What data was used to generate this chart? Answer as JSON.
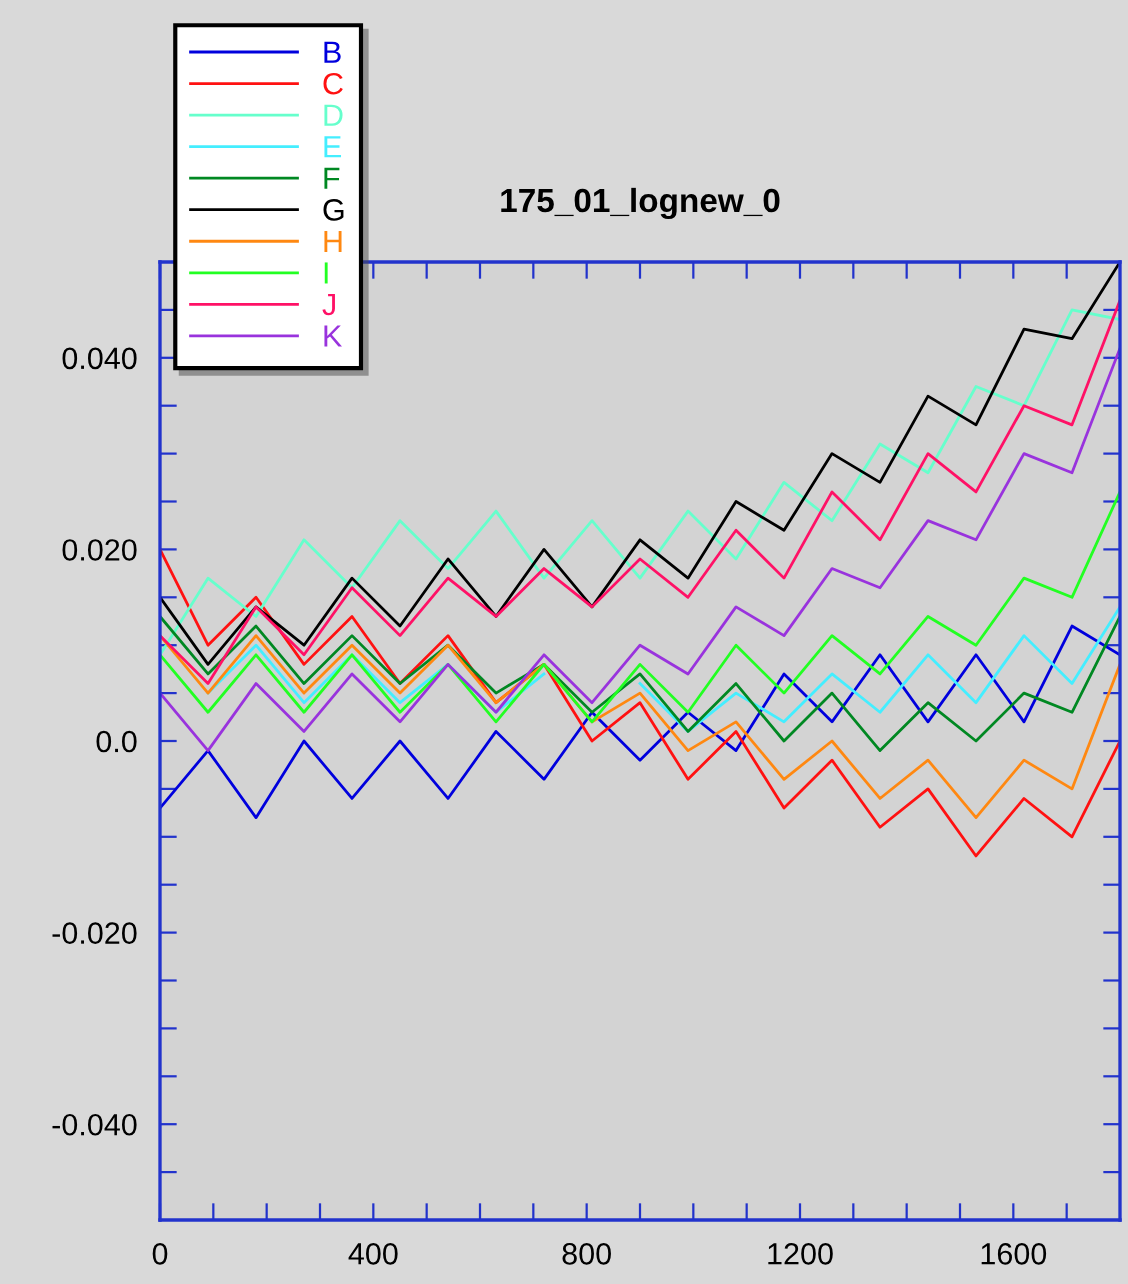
{
  "chart_data": {
    "type": "line",
    "title": "175_01_lognew_0",
    "legend": "top left",
    "grid": false,
    "marker": "none",
    "line_style": "solid",
    "x": [
      0,
      90,
      180,
      270,
      360,
      450,
      540,
      630,
      720,
      810,
      900,
      990,
      1080,
      1170,
      1260,
      1350,
      1440,
      1530,
      1620,
      1710,
      1800
    ],
    "xlim": [
      0,
      1800
    ],
    "ylim": [
      -0.05,
      0.05
    ],
    "xticks": [
      0,
      {
        "value": 100,
        "label": null
      },
      {
        "value": 200,
        "label": null
      },
      {
        "value": 300,
        "label": null
      },
      400,
      {
        "value": 500,
        "label": null
      },
      {
        "value": 600,
        "label": null
      },
      {
        "value": 700,
        "label": null
      },
      800,
      {
        "value": 900,
        "label": null
      },
      {
        "value": 1000,
        "label": null
      },
      {
        "value": 1100,
        "label": null
      },
      1200,
      {
        "value": 1300,
        "label": null
      },
      {
        "value": 1400,
        "label": null
      },
      {
        "value": 1500,
        "label": null
      },
      1600,
      {
        "value": 1700,
        "label": null
      }
    ],
    "yticks": [
      {
        "value": -0.045,
        "label": null
      },
      {
        "value": -0.04,
        "label": "-0.040"
      },
      {
        "value": -0.035,
        "label": null
      },
      {
        "value": -0.03,
        "label": null
      },
      {
        "value": -0.025,
        "label": null
      },
      {
        "value": -0.02,
        "label": "-0.020"
      },
      {
        "value": -0.015,
        "label": null
      },
      {
        "value": -0.01,
        "label": null
      },
      {
        "value": -0.005,
        "label": null
      },
      {
        "value": 0,
        "label": "0.0"
      },
      {
        "value": 0.005,
        "label": null
      },
      {
        "value": 0.01,
        "label": null
      },
      {
        "value": 0.015,
        "label": null
      },
      {
        "value": 0.02,
        "label": "0.020"
      },
      {
        "value": 0.025,
        "label": null
      },
      {
        "value": 0.03,
        "label": null
      },
      {
        "value": 0.035,
        "label": null
      },
      {
        "value": 0.04,
        "label": "0.040"
      },
      {
        "value": 0.045,
        "label": null
      }
    ],
    "series": [
      {
        "name": "B",
        "color": "#0000dd",
        "values": [
          -0.007,
          -0.001,
          -0.008,
          0.0,
          -0.006,
          0.0,
          -0.006,
          0.001,
          -0.004,
          0.003,
          -0.002,
          0.003,
          -0.001,
          0.007,
          0.002,
          0.009,
          0.002,
          0.009,
          0.002,
          0.012,
          0.009
        ]
      },
      {
        "name": "C",
        "color": "#ff1111",
        "values": [
          0.02,
          0.01,
          0.015,
          0.008,
          0.013,
          0.006,
          0.011,
          0.004,
          0.008,
          0.0,
          0.004,
          -0.004,
          0.001,
          -0.007,
          -0.002,
          -0.009,
          -0.005,
          -0.012,
          -0.006,
          -0.01,
          0.0
        ]
      },
      {
        "name": "D",
        "color": "#66ffcc",
        "values": [
          0.009,
          0.017,
          0.013,
          0.021,
          0.016,
          0.023,
          0.018,
          0.024,
          0.017,
          0.023,
          0.017,
          0.024,
          0.019,
          0.027,
          0.023,
          0.031,
          0.028,
          0.037,
          0.035,
          0.045,
          0.044
        ]
      },
      {
        "name": "E",
        "color": "#44eeff",
        "values": [
          null,
          0.005,
          0.01,
          0.004,
          0.009,
          0.004,
          0.008,
          0.003,
          0.007,
          null,
          0.006,
          0.001,
          0.005,
          0.002,
          0.007,
          0.003,
          0.009,
          0.004,
          0.011,
          0.006,
          0.014
        ]
      },
      {
        "name": "F",
        "color": "#008822",
        "values": [
          0.013,
          0.007,
          0.012,
          0.006,
          0.011,
          0.006,
          0.01,
          0.005,
          0.008,
          0.003,
          0.007,
          0.001,
          0.006,
          0.0,
          0.005,
          -0.001,
          0.004,
          0.0,
          0.005,
          0.003,
          0.013
        ]
      },
      {
        "name": "G",
        "color": "#000000",
        "values": [
          0.015,
          0.008,
          0.014,
          0.01,
          0.017,
          0.012,
          0.019,
          0.013,
          0.02,
          0.014,
          0.021,
          0.017,
          0.025,
          0.022,
          0.03,
          0.027,
          0.036,
          0.033,
          0.043,
          0.042,
          0.05
        ]
      },
      {
        "name": "H",
        "color": "#ff8811",
        "values": [
          0.011,
          0.005,
          0.011,
          0.005,
          0.01,
          0.005,
          0.01,
          0.004,
          0.008,
          0.002,
          0.005,
          -0.001,
          0.002,
          -0.004,
          0.0,
          -0.006,
          -0.002,
          -0.008,
          -0.002,
          -0.005,
          0.008
        ]
      },
      {
        "name": "I",
        "color": "#22ff22",
        "values": [
          0.009,
          0.003,
          0.009,
          0.003,
          0.009,
          0.003,
          0.008,
          0.002,
          0.008,
          0.002,
          0.008,
          0.003,
          0.01,
          0.005,
          0.011,
          0.007,
          0.013,
          0.01,
          0.017,
          0.015,
          0.026
        ]
      },
      {
        "name": "J",
        "color": "#ff1166",
        "values": [
          0.011,
          0.006,
          0.014,
          0.009,
          0.016,
          0.011,
          0.017,
          0.013,
          0.018,
          0.014,
          0.019,
          0.015,
          0.022,
          0.017,
          0.026,
          0.021,
          0.03,
          0.026,
          0.035,
          0.033,
          0.046
        ]
      },
      {
        "name": "K",
        "color": "#9933dd",
        "values": [
          0.005,
          -0.001,
          0.006,
          0.001,
          0.007,
          0.002,
          0.008,
          0.003,
          0.009,
          0.004,
          0.01,
          0.007,
          0.014,
          0.011,
          0.018,
          0.016,
          0.023,
          0.021,
          0.03,
          0.028,
          0.041
        ]
      }
    ]
  }
}
